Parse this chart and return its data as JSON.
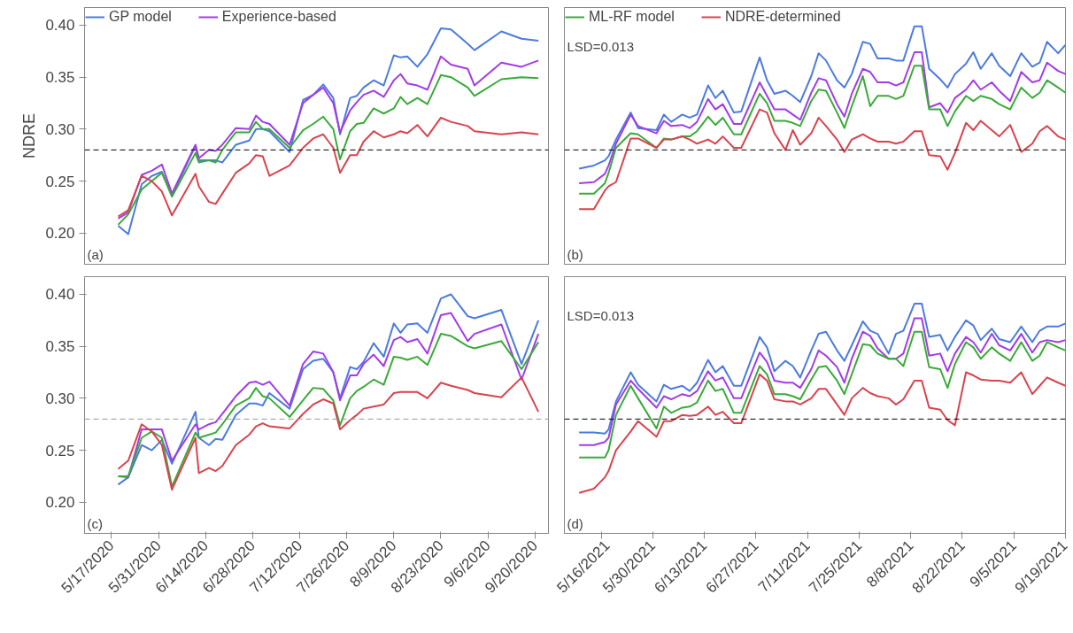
{
  "chart_data": [
    {
      "type": "line",
      "ylabel": "NDRE",
      "legend": "top",
      "tick_labels": "y",
      "grid": false,
      "x": [
        "2020-05-19",
        "2020-05-22",
        "2020-05-26",
        "2020-05-29",
        "2020-06-01",
        "2020-06-04",
        "2020-06-11",
        "2020-06-12",
        "2020-06-15",
        "2020-06-17",
        "2020-06-19",
        "2020-06-23",
        "2020-06-27",
        "2020-06-29",
        "2020-07-01",
        "2020-07-03",
        "2020-07-09",
        "2020-07-13",
        "2020-07-16",
        "2020-07-19",
        "2020-07-22",
        "2020-07-24",
        "2020-07-27",
        "2020-07-29",
        "2020-07-31",
        "2020-08-03",
        "2020-08-06",
        "2020-08-09",
        "2020-08-11",
        "2020-08-13",
        "2020-08-16",
        "2020-08-19",
        "2020-08-23",
        "2020-08-26",
        "2020-08-31",
        "2020-09-02",
        "2020-09-10",
        "2020-09-16",
        "2020-09-21"
      ],
      "xlim": [
        "2020-05-09",
        "2020-09-24"
      ],
      "ylim": [
        0.17,
        0.417
      ],
      "yticks": [
        {
          "value": 0.2,
          "label": "0.20"
        },
        {
          "value": 0.25,
          "label": "0.25"
        },
        {
          "value": 0.3,
          "label": "0.30"
        },
        {
          "value": 0.35,
          "label": "0.35"
        },
        {
          "value": 0.4,
          "label": "0.40"
        }
      ],
      "ref_lines": [
        {
          "axis": "y",
          "value": 0.28,
          "line_style": "dashed",
          "color": "#000000"
        }
      ],
      "annotations": [
        "(a)"
      ],
      "series": [
        {
          "name": "GP model",
          "color": "#4b7be0",
          "values": [
            0.207,
            0.199,
            0.247,
            0.255,
            0.259,
            0.236,
            0.284,
            0.27,
            0.27,
            0.27,
            0.268,
            0.285,
            0.289,
            0.3,
            0.3,
            0.298,
            0.278,
            0.328,
            0.333,
            0.343,
            0.33,
            0.295,
            0.33,
            0.332,
            0.34,
            0.347,
            0.342,
            0.371,
            0.369,
            0.37,
            0.36,
            0.372,
            0.397,
            0.396,
            0.382,
            0.376,
            0.394,
            0.387,
            0.385
          ]
        },
        {
          "name": "Experience-based",
          "color": "#a23be8",
          "values": [
            0.214,
            0.22,
            0.256,
            0.26,
            0.266,
            0.238,
            0.285,
            0.272,
            0.28,
            0.279,
            0.285,
            0.301,
            0.3,
            0.313,
            0.307,
            0.305,
            0.285,
            0.325,
            0.333,
            0.34,
            0.325,
            0.297,
            0.318,
            0.326,
            0.333,
            0.337,
            0.331,
            0.347,
            0.353,
            0.344,
            0.342,
            0.338,
            0.37,
            0.362,
            0.358,
            0.342,
            0.364,
            0.36,
            0.366
          ]
        },
        {
          "color": "#3aaa3a",
          "values": [
            0.208,
            0.218,
            0.242,
            0.25,
            0.258,
            0.235,
            0.277,
            0.268,
            0.27,
            0.268,
            0.28,
            0.297,
            0.297,
            0.307,
            0.3,
            0.3,
            0.282,
            0.299,
            0.305,
            0.312,
            0.3,
            0.271,
            0.298,
            0.305,
            0.306,
            0.32,
            0.315,
            0.32,
            0.331,
            0.324,
            0.33,
            0.324,
            0.352,
            0.35,
            0.34,
            0.332,
            0.348,
            0.35,
            0.349
          ]
        },
        {
          "color": "#d9434e",
          "values": [
            0.216,
            0.222,
            0.255,
            0.25,
            0.24,
            0.217,
            0.257,
            0.245,
            0.23,
            0.228,
            0.238,
            0.258,
            0.267,
            0.275,
            0.274,
            0.255,
            0.265,
            0.282,
            0.291,
            0.295,
            0.282,
            0.258,
            0.275,
            0.275,
            0.288,
            0.298,
            0.292,
            0.295,
            0.298,
            0.296,
            0.304,
            0.293,
            0.311,
            0.307,
            0.303,
            0.298,
            0.295,
            0.297,
            0.295
          ]
        }
      ]
    },
    {
      "type": "line",
      "tick_labels": false,
      "grid": false,
      "x": [
        "2021-05-10",
        "2021-05-14",
        "2021-05-17",
        "2021-05-18",
        "2021-05-20",
        "2021-05-24",
        "2021-05-26",
        "2021-05-31",
        "2021-06-02",
        "2021-06-04",
        "2021-06-07",
        "2021-06-09",
        "2021-06-11",
        "2021-06-14",
        "2021-06-16",
        "2021-06-18",
        "2021-06-21",
        "2021-06-23",
        "2021-06-28",
        "2021-06-30",
        "2021-07-02",
        "2021-07-05",
        "2021-07-07",
        "2021-07-09",
        "2021-07-12",
        "2021-07-14",
        "2021-07-16",
        "2021-07-19",
        "2021-07-21",
        "2021-07-23",
        "2021-07-26",
        "2021-07-28",
        "2021-07-30",
        "2021-08-02",
        "2021-08-04",
        "2021-08-06",
        "2021-08-09",
        "2021-08-11",
        "2021-08-13",
        "2021-08-16",
        "2021-08-18",
        "2021-08-20",
        "2021-08-23",
        "2021-08-25",
        "2021-08-27",
        "2021-08-30",
        "2021-09-01",
        "2021-09-04",
        "2021-09-07",
        "2021-09-10",
        "2021-09-12",
        "2021-09-14",
        "2021-09-17",
        "2021-09-19"
      ],
      "xlim": [
        "2021-05-06",
        "2021-09-19"
      ],
      "ylim": [
        0.17,
        0.417
      ],
      "ref_lines": [
        {
          "axis": "y",
          "value": 0.28,
          "line_style": "dashed",
          "color": "#000000"
        }
      ],
      "annotations": [
        "(b)",
        "LSD=0.013"
      ],
      "legend": "top",
      "series": [
        {
          "color": "#4b7be0",
          "values": [
            0.262,
            0.265,
            0.27,
            0.274,
            0.29,
            0.316,
            0.301,
            0.299,
            0.314,
            0.307,
            0.314,
            0.311,
            0.314,
            0.342,
            0.33,
            0.337,
            0.316,
            0.317,
            0.369,
            0.347,
            0.334,
            0.337,
            0.332,
            0.326,
            0.351,
            0.373,
            0.366,
            0.347,
            0.34,
            0.353,
            0.384,
            0.382,
            0.368,
            0.368,
            0.366,
            0.366,
            0.399,
            0.399,
            0.358,
            0.348,
            0.34,
            0.353,
            0.363,
            0.374,
            0.358,
            0.373,
            0.361,
            0.351,
            0.373,
            0.36,
            0.364,
            0.384,
            0.373,
            0.381
          ]
        },
        {
          "color": "#a23be8",
          "values": [
            0.248,
            0.249,
            0.257,
            0.265,
            0.286,
            0.314,
            0.303,
            0.296,
            0.308,
            0.303,
            0.304,
            0.301,
            0.307,
            0.329,
            0.319,
            0.324,
            0.305,
            0.305,
            0.345,
            0.332,
            0.319,
            0.319,
            0.314,
            0.309,
            0.335,
            0.349,
            0.347,
            0.324,
            0.312,
            0.334,
            0.358,
            0.355,
            0.345,
            0.345,
            0.342,
            0.345,
            0.374,
            0.374,
            0.321,
            0.325,
            0.316,
            0.33,
            0.338,
            0.347,
            0.338,
            0.345,
            0.337,
            0.327,
            0.355,
            0.345,
            0.347,
            0.364,
            0.356,
            0.353
          ]
        },
        {
          "name": "ML-RF model",
          "color": "#3aaa3a",
          "values": [
            0.238,
            0.238,
            0.248,
            0.258,
            0.282,
            0.296,
            0.295,
            0.282,
            0.291,
            0.29,
            0.293,
            0.293,
            0.298,
            0.312,
            0.304,
            0.311,
            0.295,
            0.295,
            0.334,
            0.325,
            0.308,
            0.308,
            0.306,
            0.303,
            0.327,
            0.338,
            0.337,
            0.316,
            0.301,
            0.322,
            0.351,
            0.322,
            0.332,
            0.332,
            0.329,
            0.332,
            0.361,
            0.361,
            0.319,
            0.319,
            0.303,
            0.317,
            0.332,
            0.327,
            0.332,
            0.329,
            0.324,
            0.319,
            0.34,
            0.33,
            0.335,
            0.347,
            0.34,
            0.335
          ]
        },
        {
          "name": "NDRE-determined",
          "color": "#d9434e",
          "values": [
            0.223,
            0.223,
            0.241,
            0.245,
            0.249,
            0.291,
            0.291,
            0.282,
            0.29,
            0.29,
            0.293,
            0.29,
            0.286,
            0.29,
            0.286,
            0.293,
            0.282,
            0.282,
            0.319,
            0.316,
            0.296,
            0.28,
            0.299,
            0.285,
            0.296,
            0.311,
            0.303,
            0.29,
            0.278,
            0.29,
            0.295,
            0.291,
            0.288,
            0.288,
            0.286,
            0.288,
            0.298,
            0.298,
            0.275,
            0.274,
            0.261,
            0.277,
            0.306,
            0.299,
            0.308,
            0.299,
            0.293,
            0.304,
            0.278,
            0.286,
            0.298,
            0.303,
            0.293,
            0.29
          ]
        }
      ]
    },
    {
      "type": "line",
      "grid": false,
      "x": [
        "2020-05-19",
        "2020-05-22",
        "2020-05-26",
        "2020-05-29",
        "2020-06-01",
        "2020-06-04",
        "2020-06-11",
        "2020-06-12",
        "2020-06-15",
        "2020-06-17",
        "2020-06-19",
        "2020-06-23",
        "2020-06-27",
        "2020-06-29",
        "2020-07-01",
        "2020-07-03",
        "2020-07-09",
        "2020-07-13",
        "2020-07-16",
        "2020-07-19",
        "2020-07-22",
        "2020-07-24",
        "2020-07-27",
        "2020-07-29",
        "2020-07-31",
        "2020-08-03",
        "2020-08-06",
        "2020-08-09",
        "2020-08-11",
        "2020-08-13",
        "2020-08-16",
        "2020-08-19",
        "2020-08-23",
        "2020-08-26",
        "2020-08-31",
        "2020-09-02",
        "2020-09-10",
        "2020-09-16",
        "2020-09-21"
      ],
      "xlim": [
        "2020-05-09",
        "2020-09-24"
      ],
      "xticks": [
        {
          "value": "2020-05-17",
          "label": "5/17/2020"
        },
        {
          "value": "2020-05-31",
          "label": "5/31/2020"
        },
        {
          "value": "2020-06-14",
          "label": "6/14/2020"
        },
        {
          "value": "2020-06-28",
          "label": "6/28/2020"
        },
        {
          "value": "2020-07-12",
          "label": "7/12/2020"
        },
        {
          "value": "2020-07-26",
          "label": "7/26/2020"
        },
        {
          "value": "2020-08-09",
          "label": "8/9/2020"
        },
        {
          "value": "2020-08-23",
          "label": "8/23/2020"
        },
        {
          "value": "2020-09-06",
          "label": "9/6/2020"
        },
        {
          "value": "2020-09-20",
          "label": "9/20/2020"
        }
      ],
      "ylim": [
        0.17,
        0.417
      ],
      "yticks": [
        {
          "value": 0.2,
          "label": "0.20"
        },
        {
          "value": 0.25,
          "label": "0.25"
        },
        {
          "value": 0.3,
          "label": "0.30"
        },
        {
          "value": 0.35,
          "label": "0.35"
        },
        {
          "value": 0.4,
          "label": "0.40"
        }
      ],
      "ref_lines": [
        {
          "axis": "y",
          "value": 0.28,
          "line_style": "dashed",
          "color": "#999999"
        }
      ],
      "annotations": [
        "(c)"
      ],
      "series": [
        {
          "color": "#4b7be0",
          "values": [
            0.217,
            0.224,
            0.255,
            0.25,
            0.26,
            0.237,
            0.287,
            0.262,
            0.255,
            0.261,
            0.26,
            0.284,
            0.295,
            0.295,
            0.293,
            0.305,
            0.29,
            0.328,
            0.336,
            0.338,
            0.325,
            0.3,
            0.33,
            0.328,
            0.335,
            0.353,
            0.34,
            0.372,
            0.363,
            0.371,
            0.372,
            0.363,
            0.396,
            0.4,
            0.379,
            0.377,
            0.385,
            0.333,
            0.375
          ]
        },
        {
          "color": "#a23be8",
          "values": [
            0.225,
            0.224,
            0.27,
            0.27,
            0.27,
            0.24,
            0.275,
            0.27,
            0.275,
            0.277,
            0.285,
            0.302,
            0.315,
            0.316,
            0.313,
            0.316,
            0.293,
            0.333,
            0.345,
            0.343,
            0.325,
            0.298,
            0.322,
            0.322,
            0.333,
            0.342,
            0.331,
            0.356,
            0.359,
            0.354,
            0.357,
            0.343,
            0.38,
            0.382,
            0.355,
            0.362,
            0.371,
            0.318,
            0.362
          ]
        },
        {
          "color": "#3aaa3a",
          "values": [
            0.225,
            0.225,
            0.262,
            0.268,
            0.262,
            0.215,
            0.267,
            0.262,
            0.265,
            0.267,
            0.275,
            0.293,
            0.3,
            0.31,
            0.302,
            0.3,
            0.282,
            0.298,
            0.31,
            0.309,
            0.298,
            0.274,
            0.3,
            0.307,
            0.311,
            0.318,
            0.313,
            0.34,
            0.339,
            0.337,
            0.34,
            0.332,
            0.362,
            0.36,
            0.35,
            0.348,
            0.355,
            0.328,
            0.354
          ]
        },
        {
          "color": "#d9434e",
          "values": [
            0.232,
            0.24,
            0.275,
            0.268,
            0.255,
            0.212,
            0.262,
            0.228,
            0.233,
            0.23,
            0.235,
            0.255,
            0.265,
            0.273,
            0.276,
            0.273,
            0.271,
            0.285,
            0.294,
            0.299,
            0.295,
            0.27,
            0.279,
            0.284,
            0.29,
            0.292,
            0.294,
            0.305,
            0.306,
            0.306,
            0.306,
            0.3,
            0.315,
            0.312,
            0.308,
            0.305,
            0.301,
            0.32,
            0.287
          ]
        }
      ]
    },
    {
      "type": "line",
      "tick_labels": "x",
      "grid": false,
      "x": [
        "2021-05-10",
        "2021-05-14",
        "2021-05-17",
        "2021-05-18",
        "2021-05-20",
        "2021-05-24",
        "2021-05-26",
        "2021-05-31",
        "2021-06-02",
        "2021-06-04",
        "2021-06-07",
        "2021-06-09",
        "2021-06-11",
        "2021-06-14",
        "2021-06-16",
        "2021-06-18",
        "2021-06-21",
        "2021-06-23",
        "2021-06-28",
        "2021-06-30",
        "2021-07-02",
        "2021-07-05",
        "2021-07-07",
        "2021-07-09",
        "2021-07-12",
        "2021-07-14",
        "2021-07-16",
        "2021-07-19",
        "2021-07-21",
        "2021-07-23",
        "2021-07-26",
        "2021-07-28",
        "2021-07-30",
        "2021-08-02",
        "2021-08-04",
        "2021-08-06",
        "2021-08-09",
        "2021-08-11",
        "2021-08-13",
        "2021-08-16",
        "2021-08-18",
        "2021-08-20",
        "2021-08-23",
        "2021-08-25",
        "2021-08-27",
        "2021-08-30",
        "2021-09-01",
        "2021-09-04",
        "2021-09-07",
        "2021-09-10",
        "2021-09-12",
        "2021-09-14",
        "2021-09-17",
        "2021-09-19"
      ],
      "xlim": [
        "2021-05-06",
        "2021-09-19"
      ],
      "xticks": [
        {
          "value": "2021-05-16",
          "label": "5/16/2021"
        },
        {
          "value": "2021-05-30",
          "label": "5/30/2021"
        },
        {
          "value": "2021-06-13",
          "label": "6/13/2021"
        },
        {
          "value": "2021-06-27",
          "label": "6/27/2021"
        },
        {
          "value": "2021-07-11",
          "label": "7/11/2021"
        },
        {
          "value": "2021-07-25",
          "label": "7/25/2021"
        },
        {
          "value": "2021-08-08",
          "label": "8/8/2021"
        },
        {
          "value": "2021-08-22",
          "label": "8/22/2021"
        },
        {
          "value": "2021-09-05",
          "label": "9/5/2021"
        },
        {
          "value": "2021-09-19",
          "label": "9/19/2021"
        }
      ],
      "ylim": [
        0.17,
        0.417
      ],
      "ref_lines": [
        {
          "axis": "y",
          "value": 0.28,
          "line_style": "dashed",
          "color": "#000000"
        }
      ],
      "annotations": [
        "(d)",
        "LSD=0.013"
      ],
      "series": [
        {
          "color": "#4b7be0",
          "values": [
            0.267,
            0.267,
            0.266,
            0.27,
            0.297,
            0.325,
            0.313,
            0.297,
            0.313,
            0.309,
            0.312,
            0.307,
            0.315,
            0.337,
            0.325,
            0.331,
            0.312,
            0.312,
            0.359,
            0.349,
            0.326,
            0.336,
            0.331,
            0.32,
            0.346,
            0.362,
            0.364,
            0.346,
            0.336,
            0.351,
            0.374,
            0.365,
            0.362,
            0.343,
            0.362,
            0.365,
            0.391,
            0.391,
            0.359,
            0.361,
            0.346,
            0.359,
            0.375,
            0.37,
            0.356,
            0.367,
            0.357,
            0.354,
            0.369,
            0.354,
            0.365,
            0.369,
            0.369,
            0.372
          ]
        },
        {
          "color": "#a23be8",
          "values": [
            0.255,
            0.255,
            0.258,
            0.262,
            0.294,
            0.317,
            0.309,
            0.291,
            0.302,
            0.299,
            0.304,
            0.302,
            0.307,
            0.326,
            0.317,
            0.32,
            0.3,
            0.3,
            0.344,
            0.335,
            0.317,
            0.315,
            0.315,
            0.31,
            0.328,
            0.346,
            0.341,
            0.33,
            0.315,
            0.338,
            0.364,
            0.36,
            0.348,
            0.338,
            0.338,
            0.343,
            0.377,
            0.377,
            0.341,
            0.343,
            0.326,
            0.343,
            0.359,
            0.354,
            0.344,
            0.362,
            0.351,
            0.346,
            0.362,
            0.344,
            0.354,
            0.356,
            0.354,
            0.356
          ]
        },
        {
          "color": "#3aaa3a",
          "values": [
            0.243,
            0.243,
            0.243,
            0.25,
            0.284,
            0.312,
            0.3,
            0.271,
            0.292,
            0.286,
            0.291,
            0.292,
            0.296,
            0.317,
            0.307,
            0.309,
            0.286,
            0.286,
            0.331,
            0.323,
            0.304,
            0.304,
            0.302,
            0.299,
            0.318,
            0.33,
            0.331,
            0.317,
            0.304,
            0.323,
            0.352,
            0.351,
            0.343,
            0.338,
            0.338,
            0.331,
            0.364,
            0.364,
            0.33,
            0.328,
            0.31,
            0.333,
            0.354,
            0.349,
            0.338,
            0.349,
            0.343,
            0.336,
            0.354,
            0.336,
            0.341,
            0.354,
            0.349,
            0.346
          ]
        },
        {
          "color": "#d9434e",
          "values": [
            0.209,
            0.213,
            0.224,
            0.23,
            0.25,
            0.268,
            0.278,
            0.263,
            0.278,
            0.278,
            0.284,
            0.283,
            0.284,
            0.292,
            0.284,
            0.287,
            0.276,
            0.276,
            0.323,
            0.317,
            0.299,
            0.297,
            0.297,
            0.294,
            0.3,
            0.309,
            0.309,
            0.294,
            0.284,
            0.3,
            0.31,
            0.305,
            0.302,
            0.3,
            0.294,
            0.299,
            0.317,
            0.317,
            0.291,
            0.289,
            0.279,
            0.274,
            0.325,
            0.322,
            0.318,
            0.317,
            0.317,
            0.315,
            0.325,
            0.304,
            0.312,
            0.32,
            0.315,
            0.312
          ]
        }
      ]
    }
  ]
}
